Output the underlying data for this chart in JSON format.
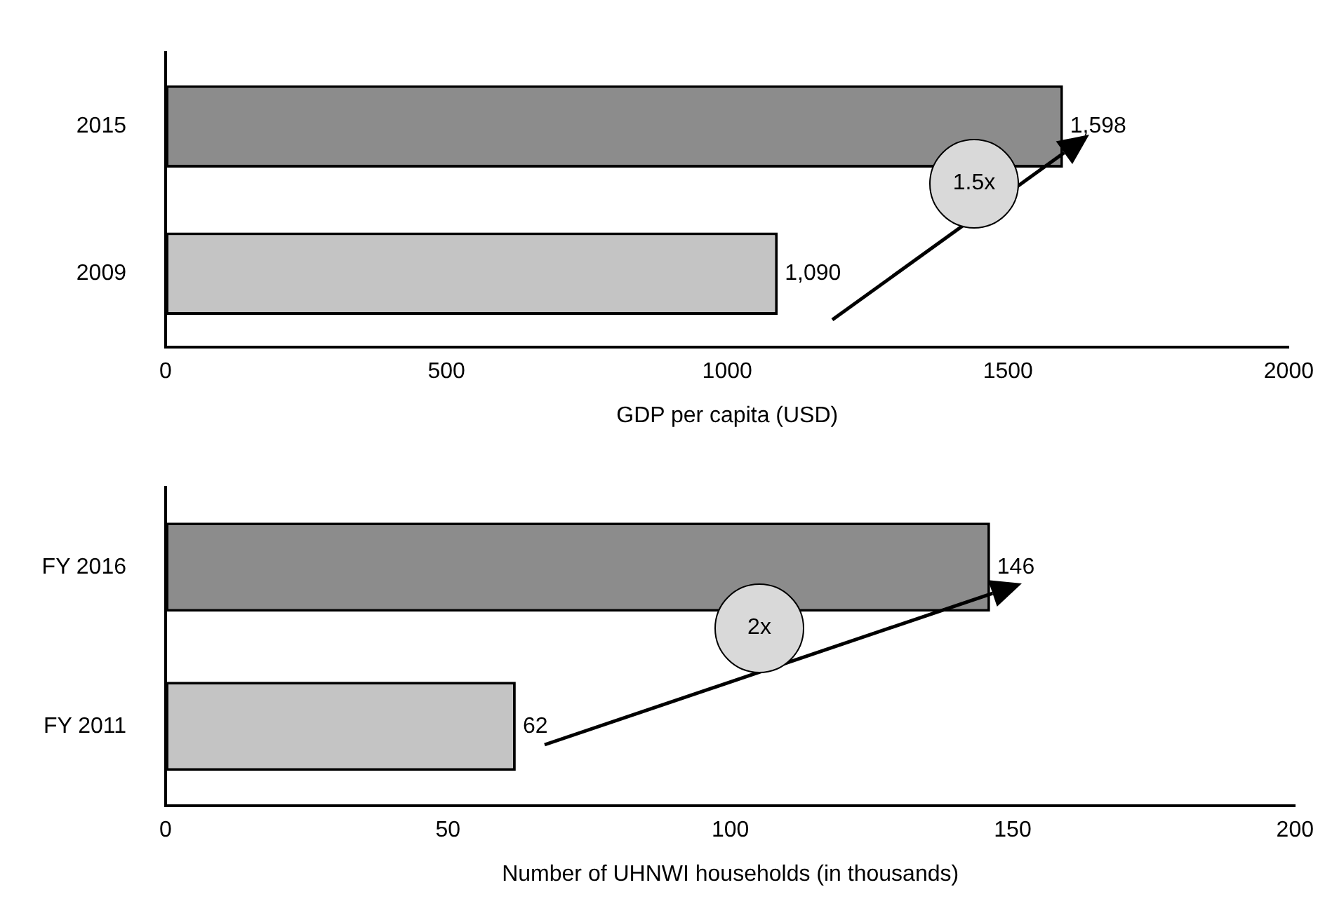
{
  "chart_data": [
    {
      "type": "bar",
      "orientation": "horizontal",
      "categories": [
        "2015",
        "2009"
      ],
      "values": [
        1598,
        1090
      ],
      "colors": [
        "#8c8c8c",
        "#c4c4c4"
      ],
      "value_labels": [
        "1,598",
        "1,090"
      ],
      "xlim": [
        0,
        2000
      ],
      "xticks": [
        0,
        500,
        1000,
        1500,
        2000
      ],
      "xlabel": "GDP per capita (USD)",
      "annotations": [
        "1.5x"
      ]
    },
    {
      "type": "bar",
      "orientation": "horizontal",
      "categories": [
        "FY 2016",
        "FY 2011"
      ],
      "values": [
        146,
        62
      ],
      "colors": [
        "#8c8c8c",
        "#c4c4c4"
      ],
      "value_labels": [
        "146",
        "62"
      ],
      "xlim": [
        0,
        200
      ],
      "xticks": [
        0,
        50,
        100,
        150,
        200
      ],
      "xlabel": "Number of UHNWI households (in thousands)",
      "annotations": [
        "2x"
      ]
    }
  ]
}
